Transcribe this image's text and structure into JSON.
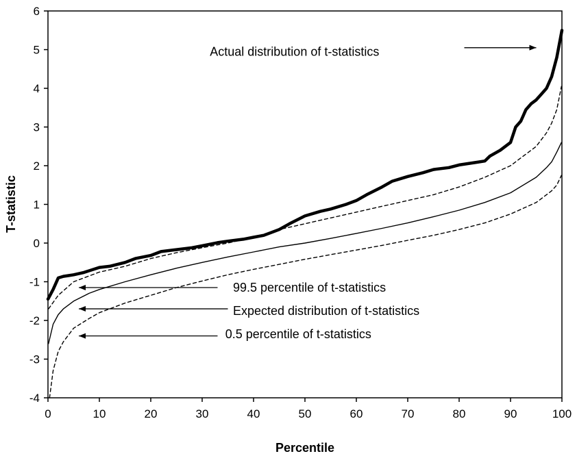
{
  "chart_data": {
    "type": "line",
    "xlabel": "Percentile",
    "ylabel": "T-statistic",
    "xlim": [
      0,
      100
    ],
    "ylim": [
      -4,
      6
    ],
    "x_ticks": [
      0,
      10,
      20,
      30,
      40,
      50,
      60,
      70,
      80,
      90,
      100
    ],
    "y_ticks": [
      -4,
      -3,
      -2,
      -1,
      0,
      1,
      2,
      3,
      4,
      5,
      6
    ],
    "grid": false,
    "series": [
      {
        "name": "Actual distribution of t-statistics",
        "style": "thick-solid",
        "points": [
          [
            0,
            -1.45
          ],
          [
            1,
            -1.2
          ],
          [
            2,
            -0.9
          ],
          [
            3,
            -0.86
          ],
          [
            4,
            -0.84
          ],
          [
            5,
            -0.82
          ],
          [
            7,
            -0.76
          ],
          [
            10,
            -0.63
          ],
          [
            12,
            -0.6
          ],
          [
            15,
            -0.5
          ],
          [
            17,
            -0.4
          ],
          [
            20,
            -0.32
          ],
          [
            22,
            -0.22
          ],
          [
            25,
            -0.17
          ],
          [
            28,
            -0.12
          ],
          [
            30,
            -0.07
          ],
          [
            33,
            0.01
          ],
          [
            35,
            0.05
          ],
          [
            38,
            0.1
          ],
          [
            40,
            0.15
          ],
          [
            42,
            0.2
          ],
          [
            45,
            0.35
          ],
          [
            47,
            0.5
          ],
          [
            50,
            0.7
          ],
          [
            53,
            0.82
          ],
          [
            55,
            0.88
          ],
          [
            58,
            1.0
          ],
          [
            60,
            1.1
          ],
          [
            62,
            1.25
          ],
          [
            65,
            1.45
          ],
          [
            67,
            1.6
          ],
          [
            70,
            1.72
          ],
          [
            73,
            1.82
          ],
          [
            75,
            1.9
          ],
          [
            78,
            1.95
          ],
          [
            80,
            2.02
          ],
          [
            83,
            2.08
          ],
          [
            85,
            2.12
          ],
          [
            86,
            2.25
          ],
          [
            88,
            2.4
          ],
          [
            90,
            2.6
          ],
          [
            91,
            3.0
          ],
          [
            92,
            3.15
          ],
          [
            93,
            3.45
          ],
          [
            94,
            3.6
          ],
          [
            95,
            3.7
          ],
          [
            96,
            3.85
          ],
          [
            97,
            4.0
          ],
          [
            98,
            4.3
          ],
          [
            99,
            4.8
          ],
          [
            100,
            5.5
          ]
        ]
      },
      {
        "name": "Expected distribution of t-statistics",
        "style": "thin-solid",
        "points": [
          [
            0.1,
            -2.6
          ],
          [
            1,
            -2.1
          ],
          [
            2,
            -1.85
          ],
          [
            3,
            -1.7
          ],
          [
            5,
            -1.5
          ],
          [
            8,
            -1.3
          ],
          [
            10,
            -1.2
          ],
          [
            15,
            -1.0
          ],
          [
            20,
            -0.82
          ],
          [
            25,
            -0.65
          ],
          [
            30,
            -0.5
          ],
          [
            35,
            -0.36
          ],
          [
            40,
            -0.23
          ],
          [
            45,
            -0.1
          ],
          [
            50,
            0.0
          ],
          [
            55,
            0.12
          ],
          [
            60,
            0.25
          ],
          [
            65,
            0.38
          ],
          [
            70,
            0.52
          ],
          [
            75,
            0.68
          ],
          [
            80,
            0.85
          ],
          [
            85,
            1.05
          ],
          [
            90,
            1.3
          ],
          [
            95,
            1.7
          ],
          [
            97,
            1.95
          ],
          [
            98,
            2.1
          ],
          [
            99,
            2.35
          ],
          [
            99.9,
            2.6
          ]
        ]
      },
      {
        "name": "99.5 percentile of t-statistics",
        "style": "dashed",
        "points": [
          [
            0.1,
            -1.7
          ],
          [
            2,
            -1.35
          ],
          [
            5,
            -1.0
          ],
          [
            10,
            -0.75
          ],
          [
            15,
            -0.6
          ],
          [
            20,
            -0.4
          ],
          [
            25,
            -0.25
          ],
          [
            30,
            -0.12
          ],
          [
            35,
            0.0
          ],
          [
            40,
            0.15
          ],
          [
            45,
            0.35
          ],
          [
            50,
            0.5
          ],
          [
            55,
            0.65
          ],
          [
            60,
            0.8
          ],
          [
            65,
            0.95
          ],
          [
            70,
            1.1
          ],
          [
            75,
            1.25
          ],
          [
            80,
            1.45
          ],
          [
            85,
            1.7
          ],
          [
            90,
            2.0
          ],
          [
            95,
            2.5
          ],
          [
            97,
            2.85
          ],
          [
            98,
            3.1
          ],
          [
            99,
            3.45
          ],
          [
            99.9,
            4.05
          ]
        ]
      },
      {
        "name": "0.5 percentile of t-statistics",
        "style": "dashed",
        "points": [
          [
            0.3,
            -4.0
          ],
          [
            1,
            -3.3
          ],
          [
            2,
            -2.8
          ],
          [
            3,
            -2.55
          ],
          [
            5,
            -2.2
          ],
          [
            8,
            -1.95
          ],
          [
            10,
            -1.8
          ],
          [
            15,
            -1.55
          ],
          [
            20,
            -1.35
          ],
          [
            25,
            -1.15
          ],
          [
            30,
            -0.98
          ],
          [
            35,
            -0.82
          ],
          [
            40,
            -0.68
          ],
          [
            45,
            -0.55
          ],
          [
            50,
            -0.42
          ],
          [
            55,
            -0.3
          ],
          [
            60,
            -0.18
          ],
          [
            65,
            -0.06
          ],
          [
            70,
            0.07
          ],
          [
            75,
            0.2
          ],
          [
            80,
            0.35
          ],
          [
            85,
            0.52
          ],
          [
            90,
            0.75
          ],
          [
            95,
            1.05
          ],
          [
            97,
            1.25
          ],
          [
            98,
            1.35
          ],
          [
            99,
            1.5
          ],
          [
            99.9,
            1.75
          ]
        ]
      }
    ],
    "annotations": [
      {
        "id": "actual",
        "text": "Actual distribution of t-statistics",
        "text_x": 31.5,
        "text_y": 4.95,
        "arrow_from": [
          81,
          5.05
        ],
        "arrow_to": [
          95,
          5.05
        ]
      },
      {
        "id": "p995",
        "text": "99.5 percentile of t-statistics",
        "text_x": 36,
        "text_y": -1.15,
        "arrow_from": [
          33,
          -1.15
        ],
        "arrow_to": [
          6,
          -1.15
        ]
      },
      {
        "id": "expected",
        "text": "Expected distribution of t-statistics",
        "text_x": 36,
        "text_y": -1.75,
        "arrow_from": [
          35,
          -1.7
        ],
        "arrow_to": [
          6,
          -1.7
        ]
      },
      {
        "id": "p005",
        "text": "0.5 percentile of t-statistics",
        "text_x": 34.5,
        "text_y": -2.35,
        "arrow_from": [
          33,
          -2.4
        ],
        "arrow_to": [
          6,
          -2.4
        ]
      }
    ]
  }
}
